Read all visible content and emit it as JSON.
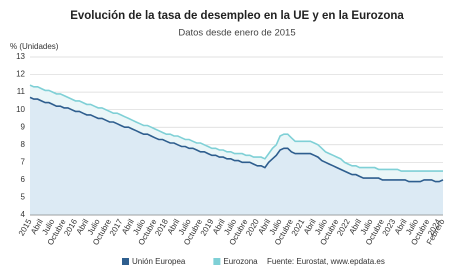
{
  "chart_data": {
    "type": "line",
    "title": "Evolución de la tasa de desempleo en la UE y en la Eurozona",
    "subtitle": "Datos desde enero de 2015",
    "y_label": "% (Unidades)",
    "source": "Fuente: Eurostat, www.epdata.es",
    "categories": [
      "2015",
      null,
      null,
      "Abril",
      null,
      null,
      "Julio",
      null,
      null,
      "Octubre",
      null,
      null,
      "2016",
      null,
      null,
      "Abril",
      null,
      null,
      "Julio",
      null,
      null,
      "Octubre",
      null,
      null,
      "2017",
      null,
      null,
      "Abril",
      null,
      null,
      "Julio",
      null,
      null,
      "Octubre",
      null,
      null,
      "2018",
      null,
      null,
      "Abril",
      null,
      null,
      "Julio",
      null,
      null,
      "Octubre",
      null,
      null,
      "2019",
      null,
      null,
      "Abril",
      null,
      null,
      "Julio",
      null,
      null,
      "Octubre",
      null,
      null,
      "2020",
      null,
      null,
      "Abril",
      null,
      null,
      "Julio",
      null,
      null,
      "Octubre",
      null,
      null,
      "2021",
      null,
      null,
      "Abril",
      null,
      null,
      "Julio",
      null,
      null,
      "Octubre",
      null,
      null,
      "2022",
      null,
      null,
      "Abril",
      null,
      null,
      "Julio",
      null,
      null,
      "Octubre",
      null,
      null,
      "2023",
      null,
      null,
      "Abril",
      null,
      null,
      "Julio",
      null,
      null,
      "Octubre",
      null,
      null,
      "2024",
      "Febrero"
    ],
    "series": [
      {
        "name": "Eurozona",
        "color": "#7fd0d6",
        "fill": "#eaf6f8",
        "values": [
          11.4,
          11.3,
          11.3,
          11.2,
          11.1,
          11.1,
          11.0,
          10.9,
          10.9,
          10.8,
          10.7,
          10.6,
          10.5,
          10.5,
          10.4,
          10.3,
          10.3,
          10.2,
          10.1,
          10.1,
          10.0,
          9.9,
          9.8,
          9.8,
          9.7,
          9.6,
          9.5,
          9.4,
          9.3,
          9.2,
          9.1,
          9.1,
          9.0,
          8.9,
          8.8,
          8.7,
          8.6,
          8.6,
          8.5,
          8.5,
          8.4,
          8.3,
          8.3,
          8.2,
          8.1,
          8.1,
          8.0,
          7.9,
          7.8,
          7.8,
          7.7,
          7.7,
          7.6,
          7.6,
          7.5,
          7.5,
          7.5,
          7.4,
          7.4,
          7.3,
          7.3,
          7.3,
          7.2,
          7.5,
          7.8,
          8.0,
          8.5,
          8.6,
          8.6,
          8.4,
          8.2,
          8.2,
          8.2,
          8.2,
          8.2,
          8.1,
          8.0,
          7.8,
          7.6,
          7.5,
          7.4,
          7.3,
          7.2,
          7.0,
          6.9,
          6.8,
          6.8,
          6.7,
          6.7,
          6.7,
          6.7,
          6.7,
          6.6,
          6.6,
          6.6,
          6.6,
          6.6,
          6.6,
          6.5,
          6.5,
          6.5,
          6.5,
          6.5,
          6.5,
          6.5,
          6.5,
          6.5,
          6.5,
          6.5,
          6.5
        ]
      },
      {
        "name": "Unión Europea",
        "color": "#2e5e8e",
        "fill": "#dceaf4",
        "values": [
          10.7,
          10.6,
          10.6,
          10.5,
          10.4,
          10.4,
          10.3,
          10.2,
          10.2,
          10.1,
          10.1,
          10.0,
          9.9,
          9.9,
          9.8,
          9.7,
          9.7,
          9.6,
          9.5,
          9.5,
          9.4,
          9.3,
          9.3,
          9.2,
          9.1,
          9.0,
          9.0,
          8.9,
          8.8,
          8.7,
          8.6,
          8.6,
          8.5,
          8.4,
          8.3,
          8.3,
          8.2,
          8.1,
          8.1,
          8.0,
          7.9,
          7.9,
          7.8,
          7.8,
          7.7,
          7.6,
          7.6,
          7.5,
          7.4,
          7.4,
          7.3,
          7.3,
          7.2,
          7.2,
          7.1,
          7.1,
          7.0,
          7.0,
          7.0,
          6.9,
          6.8,
          6.8,
          6.7,
          7.0,
          7.2,
          7.4,
          7.7,
          7.8,
          7.8,
          7.6,
          7.5,
          7.5,
          7.5,
          7.5,
          7.5,
          7.4,
          7.3,
          7.1,
          7.0,
          6.9,
          6.8,
          6.7,
          6.6,
          6.5,
          6.4,
          6.3,
          6.3,
          6.2,
          6.1,
          6.1,
          6.1,
          6.1,
          6.1,
          6.0,
          6.0,
          6.0,
          6.0,
          6.0,
          6.0,
          6.0,
          5.9,
          5.9,
          5.9,
          5.9,
          6.0,
          6.0,
          6.0,
          5.9,
          5.9,
          6.0
        ]
      }
    ],
    "legend_order": [
      1,
      0
    ],
    "ylim": [
      4,
      13
    ],
    "yticks": [
      4,
      5,
      6,
      7,
      8,
      9,
      10,
      11,
      12,
      13
    ],
    "grid": true
  }
}
